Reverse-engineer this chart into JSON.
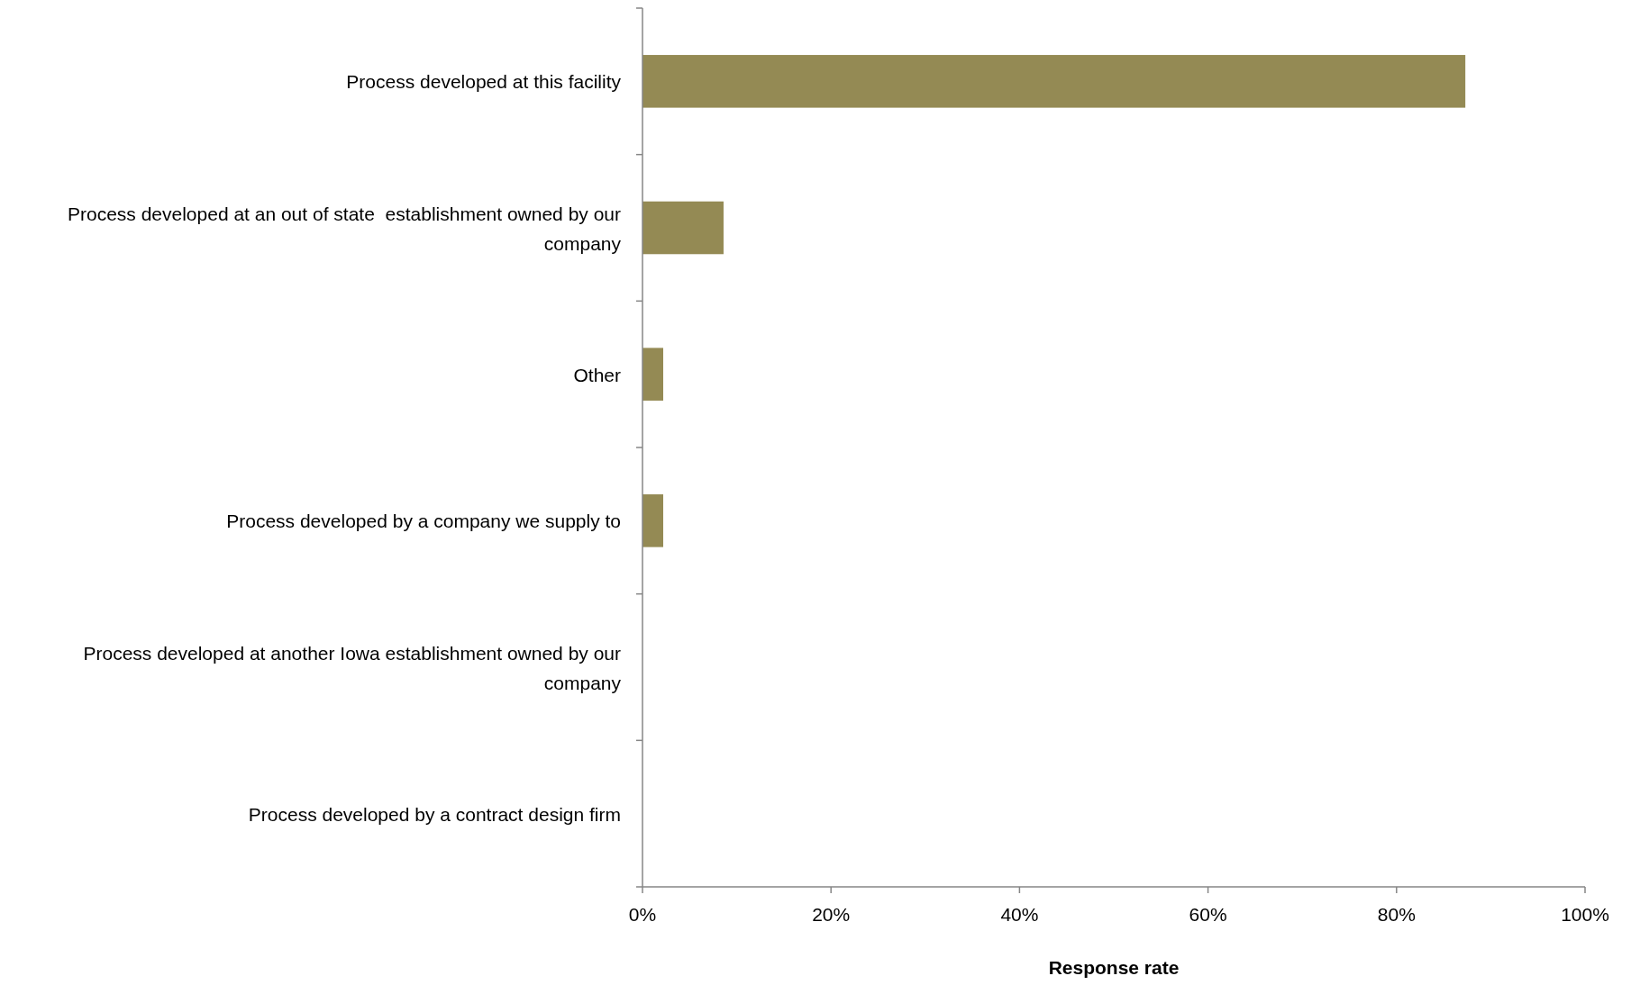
{
  "chart_data": {
    "type": "bar",
    "orientation": "horizontal",
    "xlabel": "Response rate",
    "categories": [
      "Process developed at this facility",
      "Process developed at an out of state  establishment owned by our company",
      "Other",
      "Process developed by a company we supply to",
      "Process developed at another Iowa establishment owned by our company",
      "Process developed by a contract design firm"
    ],
    "values": [
      87.3,
      8.6,
      2.2,
      2.2,
      0,
      0
    ],
    "color": "#948a54",
    "xlim": [
      0,
      100
    ],
    "xticks": [
      {
        "value": 0,
        "label": "0%"
      },
      {
        "value": 20,
        "label": "20%"
      },
      {
        "value": 40,
        "label": "40%"
      },
      {
        "value": 60,
        "label": "60%"
      },
      {
        "value": 80,
        "label": "80%"
      },
      {
        "value": 100,
        "label": "100%"
      }
    ],
    "grid": false
  }
}
